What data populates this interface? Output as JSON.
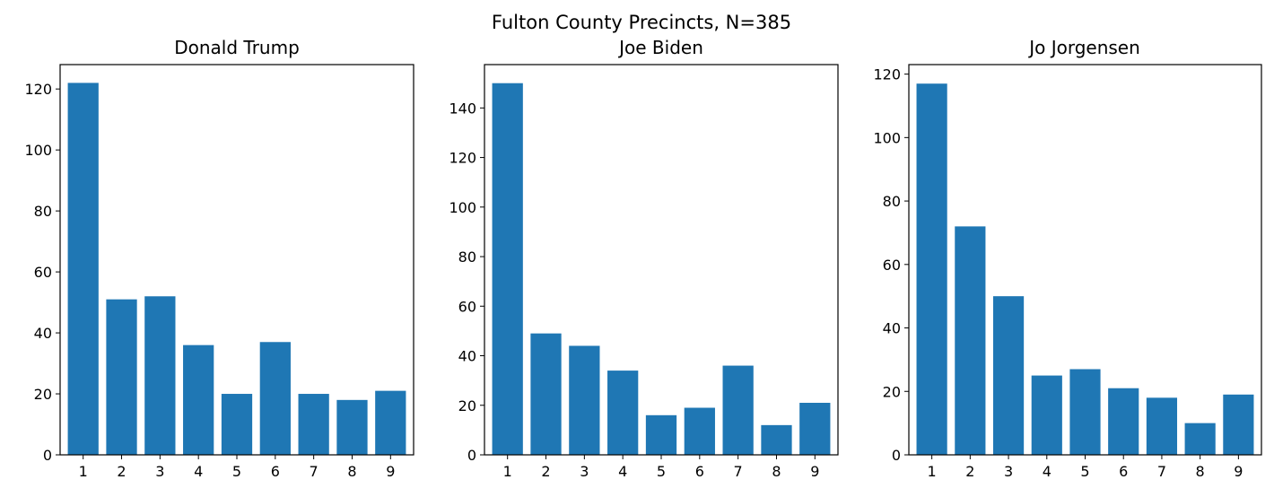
{
  "figure": {
    "suptitle": "Fulton County Precincts, N=385"
  },
  "chart_data": [
    {
      "type": "bar",
      "title": "Donald Trump",
      "categories": [
        "1",
        "2",
        "3",
        "4",
        "5",
        "6",
        "7",
        "8",
        "9"
      ],
      "values": [
        122,
        51,
        52,
        36,
        20,
        37,
        20,
        18,
        21
      ],
      "ylim": [
        0,
        128
      ],
      "yticks": [
        0,
        20,
        40,
        60,
        80,
        100,
        120
      ],
      "bar_color": "#1f77b4",
      "grid": false
    },
    {
      "type": "bar",
      "title": "Joe Biden",
      "categories": [
        "1",
        "2",
        "3",
        "4",
        "5",
        "6",
        "7",
        "8",
        "9"
      ],
      "values": [
        150,
        49,
        44,
        34,
        16,
        19,
        36,
        12,
        21
      ],
      "ylim": [
        0,
        157.5
      ],
      "yticks": [
        0,
        20,
        40,
        60,
        80,
        100,
        120,
        140
      ],
      "bar_color": "#1f77b4",
      "grid": false
    },
    {
      "type": "bar",
      "title": "Jo Jorgensen",
      "categories": [
        "1",
        "2",
        "3",
        "4",
        "5",
        "6",
        "7",
        "8",
        "9"
      ],
      "values": [
        117,
        72,
        50,
        25,
        27,
        21,
        18,
        10,
        19
      ],
      "ylim": [
        0,
        123
      ],
      "yticks": [
        0,
        20,
        40,
        60,
        80,
        100,
        120
      ],
      "bar_color": "#1f77b4",
      "grid": false
    }
  ]
}
